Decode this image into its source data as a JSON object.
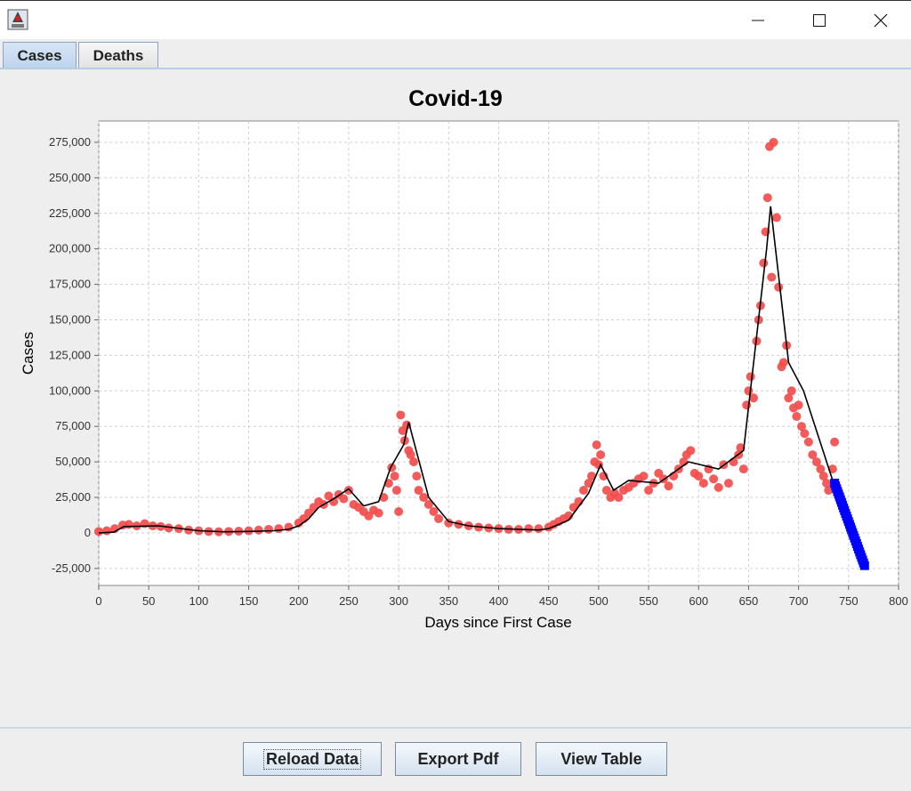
{
  "window": {
    "title": "",
    "icons": [
      "java-app-icon",
      "minimize-icon",
      "maximize-icon",
      "close-icon"
    ]
  },
  "tabs": [
    {
      "label": "Cases",
      "active": true
    },
    {
      "label": "Deaths",
      "active": false
    }
  ],
  "buttons": {
    "reload": "Reload Data",
    "export": "Export Pdf",
    "table": "View Table"
  },
  "colors": {
    "points": "#f24d4d",
    "trend": "#000000",
    "forecast": "#0000ff",
    "tab_active": "#c5d9ef"
  },
  "chart_data": {
    "type": "scatter",
    "title": "Covid-19",
    "xlabel": "Days since First Case",
    "ylabel": "Cases",
    "xlim": [
      0,
      800
    ],
    "ylim": [
      -37000,
      290000
    ],
    "grid": true,
    "xticks": [
      0,
      50,
      100,
      150,
      200,
      250,
      300,
      350,
      400,
      450,
      500,
      550,
      600,
      650,
      700,
      750,
      800
    ],
    "xtick_labels": [
      "0",
      "50",
      "100",
      "150",
      "200",
      "250",
      "300",
      "350",
      "400",
      "450",
      "500",
      "550",
      "600",
      "650",
      "700",
      "750",
      "800"
    ],
    "yticks": [
      -25000,
      0,
      25000,
      50000,
      75000,
      100000,
      125000,
      150000,
      175000,
      200000,
      225000,
      250000,
      275000
    ],
    "ytick_labels": [
      "-25,000",
      "0",
      "25,000",
      "50,000",
      "75,000",
      "100,000",
      "125,000",
      "150,000",
      "175,000",
      "200,000",
      "225,000",
      "250,000",
      "275,000"
    ],
    "series": [
      {
        "kind": "points",
        "color": "#f24d4d",
        "x": [
          0,
          8,
          16,
          24,
          30,
          38,
          46,
          54,
          62,
          70,
          80,
          90,
          100,
          110,
          120,
          130,
          140,
          150,
          160,
          170,
          180,
          190,
          200,
          205,
          210,
          215,
          220,
          225,
          230,
          235,
          240,
          245,
          250,
          255,
          260,
          265,
          270,
          275,
          280,
          285,
          290,
          293,
          296,
          298,
          300,
          302,
          304,
          306,
          308,
          310,
          312,
          315,
          318,
          320,
          325,
          330,
          335,
          340,
          350,
          360,
          370,
          380,
          390,
          400,
          410,
          420,
          430,
          440,
          450,
          455,
          460,
          465,
          470,
          475,
          480,
          485,
          490,
          493,
          496,
          498,
          500,
          502,
          505,
          508,
          512,
          516,
          520,
          525,
          530,
          535,
          540,
          545,
          550,
          555,
          560,
          565,
          570,
          575,
          580,
          585,
          588,
          592,
          596,
          600,
          605,
          610,
          615,
          620,
          625,
          630,
          635,
          640,
          642,
          645,
          648,
          650,
          652,
          655,
          658,
          660,
          662,
          665,
          667,
          669,
          671,
          673,
          675,
          678,
          680,
          683,
          685,
          688,
          690,
          693,
          695,
          698,
          700,
          703,
          706,
          710,
          714,
          718,
          722,
          725,
          728,
          730,
          734,
          736
        ],
        "y": [
          1000,
          1500,
          3000,
          5500,
          6000,
          5000,
          6500,
          5000,
          4500,
          3500,
          3000,
          2000,
          1500,
          1000,
          800,
          1000,
          1200,
          1500,
          2000,
          2500,
          3000,
          4000,
          7000,
          10000,
          14000,
          18000,
          22000,
          20000,
          26000,
          22000,
          27000,
          24000,
          30000,
          20000,
          18000,
          15000,
          12000,
          16000,
          14000,
          25000,
          35000,
          46000,
          40000,
          30000,
          15000,
          83000,
          72000,
          65000,
          76000,
          58000,
          55000,
          50000,
          40000,
          30000,
          25000,
          20000,
          15000,
          10000,
          7000,
          6000,
          5000,
          4000,
          3500,
          3000,
          2500,
          2500,
          3000,
          3000,
          4000,
          6000,
          8000,
          10000,
          12000,
          18000,
          22000,
          30000,
          35000,
          40000,
          50000,
          62000,
          48000,
          55000,
          40000,
          30000,
          25000,
          28000,
          25000,
          30000,
          32000,
          35000,
          38000,
          40000,
          30000,
          35000,
          42000,
          38000,
          33000,
          40000,
          45000,
          50000,
          55000,
          58000,
          42000,
          40000,
          35000,
          45000,
          38000,
          32000,
          48000,
          35000,
          50000,
          55000,
          60000,
          45000,
          90000,
          100000,
          110000,
          95000,
          135000,
          150000,
          160000,
          190000,
          212000,
          236000,
          272000,
          180000,
          275000,
          222000,
          173000,
          117000,
          120000,
          132000,
          95000,
          100000,
          88000,
          82000,
          90000,
          75000,
          70000,
          64000,
          55000,
          50000,
          45000,
          40000,
          35000,
          30000,
          45000,
          64000
        ],
        "x2": [],
        "y2": []
      },
      {
        "kind": "trend-line",
        "color": "#000000",
        "x": [
          0,
          15,
          25,
          60,
          100,
          125,
          150,
          175,
          190,
          200,
          210,
          220,
          235,
          250,
          265,
          280,
          292,
          305,
          310,
          330,
          350,
          370,
          400,
          440,
          450,
          470,
          490,
          502,
          515,
          530,
          560,
          590,
          620,
          645,
          668,
          672,
          690,
          705,
          735
        ],
        "y": [
          0,
          500,
          4500,
          5000,
          1500,
          800,
          1000,
          1500,
          2500,
          5000,
          10000,
          18000,
          24000,
          31000,
          19000,
          22000,
          46000,
          62000,
          78000,
          25000,
          8000,
          5000,
          3000,
          2000,
          3000,
          9000,
          28000,
          48000,
          30000,
          37000,
          35000,
          50000,
          45000,
          58000,
          200000,
          230000,
          120000,
          100000,
          35000
        ]
      },
      {
        "kind": "forecast",
        "color": "#0000ff",
        "x_start": 736,
        "x_end": 766,
        "y_start": 35000,
        "y_end": -23000
      }
    ]
  }
}
